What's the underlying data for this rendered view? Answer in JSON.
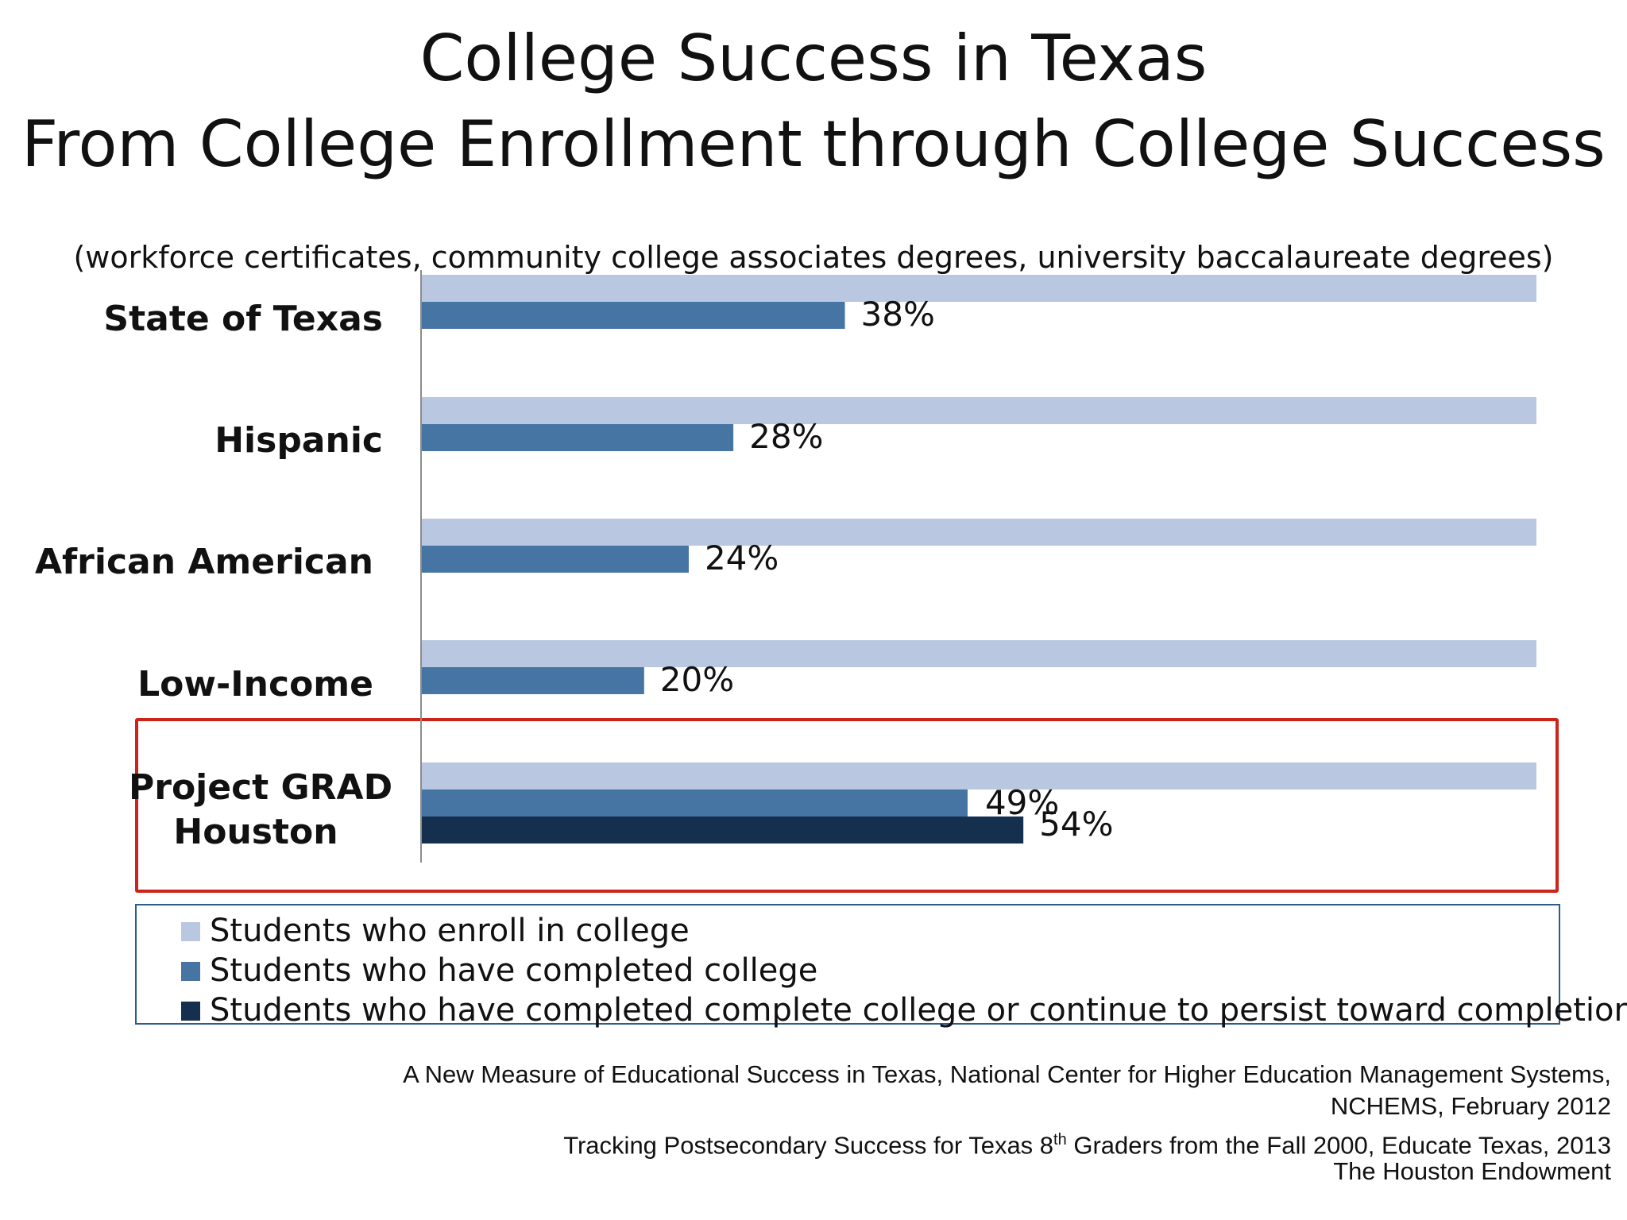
{
  "title_line1": "College Success in Texas",
  "title_line2": "From College Enrollment through College Success",
  "subtitle": "(workforce certificates, community college associates degrees, university baccalaureate degrees)",
  "chart_data": {
    "type": "bar",
    "orientation": "horizontal",
    "categories": [
      "State of Texas",
      "Hispanic",
      "African American",
      "Low-Income",
      "Project GRAD Houston"
    ],
    "series": [
      {
        "name": "Students who enroll in college",
        "values": [
          100,
          100,
          100,
          100,
          100
        ],
        "color": "#b9c7e0"
      },
      {
        "name": "Students who have completed college",
        "values": [
          38,
          28,
          24,
          20,
          49
        ],
        "color": "#4674a3"
      },
      {
        "name": "Students who have completed complete college or continue to persist toward completion",
        "values": [
          null,
          null,
          null,
          null,
          54
        ],
        "color": "#15304f"
      }
    ],
    "data_labels": {
      "completed": [
        "38%",
        "28%",
        "24%",
        "20%",
        "49%"
      ],
      "persist": "54%"
    },
    "xlim": [
      0,
      100
    ],
    "grid": false,
    "legend_position": "bottom",
    "highlighted_category": "Project GRAD Houston"
  },
  "sources": {
    "line1": "A New Measure of Educational Success in Texas, National Center for Higher Education Management Systems,",
    "line2": "NCHEMS, February 2012",
    "line3_pre": "Tracking Postsecondary Success for Texas 8",
    "line3_sup": "th",
    "line3_post": " Graders from the Fall 2000, Educate Texas, 2013",
    "line4": "The Houston Endowment"
  }
}
